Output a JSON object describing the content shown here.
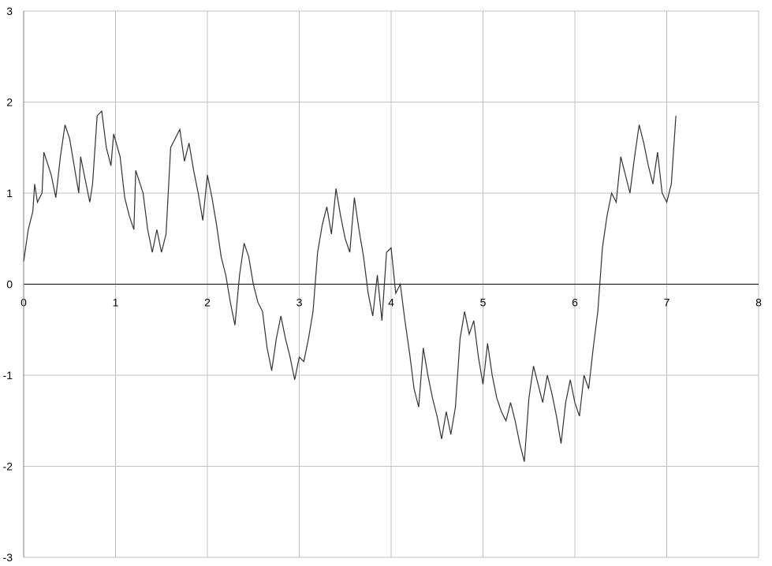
{
  "chart_data": {
    "type": "line",
    "color": "#333333",
    "grid": true,
    "x": [
      0,
      0.05,
      0.1,
      0.12,
      0.15,
      0.2,
      0.22,
      0.3,
      0.35,
      0.4,
      0.45,
      0.5,
      0.55,
      0.6,
      0.62,
      0.68,
      0.72,
      0.75,
      0.8,
      0.85,
      0.9,
      0.95,
      0.98,
      1.05,
      1.1,
      1.15,
      1.2,
      1.22,
      1.3,
      1.35,
      1.4,
      1.45,
      1.5,
      1.55,
      1.6,
      1.65,
      1.7,
      1.75,
      1.8,
      1.85,
      1.9,
      1.95,
      2.0,
      2.05,
      2.1,
      2.15,
      2.2,
      2.25,
      2.3,
      2.35,
      2.4,
      2.45,
      2.5,
      2.55,
      2.6,
      2.65,
      2.7,
      2.75,
      2.8,
      2.85,
      2.9,
      2.95,
      3.0,
      3.05,
      3.1,
      3.15,
      3.2,
      3.25,
      3.3,
      3.35,
      3.4,
      3.45,
      3.5,
      3.55,
      3.6,
      3.65,
      3.7,
      3.75,
      3.8,
      3.85,
      3.9,
      3.95,
      4.0,
      4.05,
      4.1,
      4.15,
      4.2,
      4.25,
      4.3,
      4.35,
      4.4,
      4.45,
      4.5,
      4.55,
      4.6,
      4.65,
      4.7,
      4.75,
      4.8,
      4.85,
      4.9,
      4.95,
      5.0,
      5.05,
      5.1,
      5.15,
      5.2,
      5.25,
      5.3,
      5.35,
      5.4,
      5.45,
      5.5,
      5.55,
      5.6,
      5.65,
      5.7,
      5.75,
      5.8,
      5.85,
      5.9,
      5.95,
      6.0,
      6.05,
      6.1,
      6.15,
      6.2,
      6.25,
      6.3,
      6.35,
      6.4,
      6.45,
      6.5,
      6.55,
      6.6,
      6.65,
      6.7,
      6.75,
      6.8,
      6.85,
      6.9,
      6.95,
      7.0,
      7.05,
      7.1
    ],
    "values": [
      0.25,
      0.6,
      0.8,
      1.1,
      0.9,
      1.0,
      1.45,
      1.2,
      0.95,
      1.4,
      1.75,
      1.6,
      1.3,
      1.0,
      1.4,
      1.1,
      0.9,
      1.1,
      1.85,
      1.9,
      1.5,
      1.3,
      1.65,
      1.4,
      0.95,
      0.75,
      0.6,
      1.25,
      1.0,
      0.6,
      0.35,
      0.6,
      0.35,
      0.55,
      1.5,
      1.6,
      1.7,
      1.35,
      1.55,
      1.25,
      1.0,
      0.7,
      1.2,
      0.95,
      0.65,
      0.3,
      0.1,
      -0.2,
      -0.45,
      0.1,
      0.45,
      0.3,
      0.0,
      -0.2,
      -0.3,
      -0.7,
      -0.95,
      -0.6,
      -0.35,
      -0.6,
      -0.8,
      -1.05,
      -0.8,
      -0.85,
      -0.6,
      -0.3,
      0.35,
      0.65,
      0.85,
      0.55,
      1.05,
      0.75,
      0.5,
      0.35,
      0.95,
      0.6,
      0.3,
      -0.1,
      -0.35,
      0.1,
      -0.4,
      0.35,
      0.4,
      -0.1,
      0.0,
      -0.4,
      -0.75,
      -1.15,
      -1.35,
      -0.7,
      -1.0,
      -1.25,
      -1.45,
      -1.7,
      -1.4,
      -1.65,
      -1.35,
      -0.6,
      -0.3,
      -0.55,
      -0.4,
      -0.8,
      -1.1,
      -0.65,
      -1.0,
      -1.25,
      -1.4,
      -1.5,
      -1.3,
      -1.5,
      -1.75,
      -1.95,
      -1.25,
      -0.9,
      -1.1,
      -1.3,
      -1.0,
      -1.2,
      -1.45,
      -1.75,
      -1.3,
      -1.05,
      -1.3,
      -1.45,
      -1.0,
      -1.15,
      -0.7,
      -0.3,
      0.4,
      0.75,
      1.0,
      0.9,
      1.4,
      1.2,
      1.0,
      1.4,
      1.75,
      1.55,
      1.3,
      1.1,
      1.45,
      1.0,
      0.9,
      1.1,
      1.85
    ],
    "xlim": [
      0,
      8
    ],
    "xticks": [
      0,
      1,
      2,
      3,
      4,
      5,
      6,
      7,
      8
    ],
    "ylim": [
      -3,
      3
    ],
    "yticks": [
      -3,
      -2,
      -1,
      0,
      1,
      2,
      3
    ]
  }
}
